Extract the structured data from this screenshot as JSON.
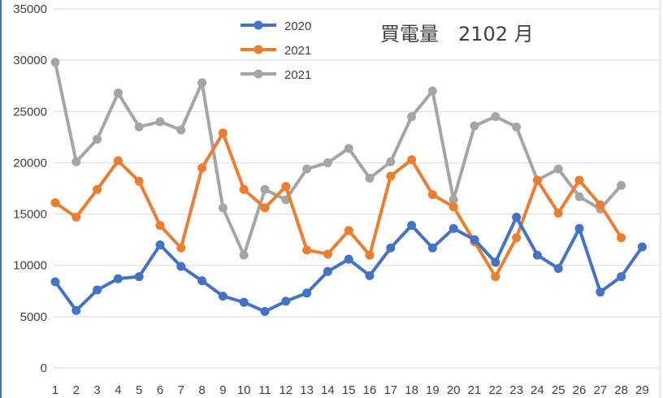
{
  "chart_data": {
    "type": "line",
    "title": "買電量　2102 月",
    "xlabel": "",
    "ylabel": "",
    "categories": [
      "1",
      "2",
      "3",
      "4",
      "5",
      "6",
      "7",
      "8",
      "9",
      "10",
      "11",
      "12",
      "13",
      "14",
      "15",
      "16",
      "17",
      "18",
      "19",
      "20",
      "21",
      "22",
      "23",
      "24",
      "25",
      "26",
      "27",
      "28",
      "29"
    ],
    "ylim": [
      0,
      35000
    ],
    "yticks": [
      0,
      5000,
      10000,
      15000,
      20000,
      25000,
      30000,
      35000
    ],
    "grid": true,
    "legend_position": "top-center",
    "series": [
      {
        "name": "2020",
        "color": "#4472c4",
        "values": [
          8400,
          5600,
          7600,
          8700,
          8900,
          12000,
          9900,
          8500,
          7000,
          6400,
          5500,
          6500,
          7300,
          9400,
          10600,
          9000,
          11700,
          13900,
          11700,
          13600,
          12500,
          10300,
          14700,
          11000,
          9700,
          13600,
          7400,
          8900,
          11800
        ]
      },
      {
        "name": "2021",
        "color": "#ed7d31",
        "values": [
          16100,
          14700,
          17400,
          20200,
          18200,
          13900,
          11700,
          19500,
          22900,
          17400,
          15600,
          17700,
          11500,
          11100,
          13400,
          11000,
          18700,
          20300,
          16900,
          15700,
          12300,
          8900,
          12700,
          18300,
          15100,
          18300,
          15900,
          12700,
          null
        ]
      },
      {
        "name": "2021",
        "color": "#a5a5a5",
        "values": [
          29800,
          20100,
          22300,
          26800,
          23500,
          24000,
          23200,
          27800,
          15600,
          11000,
          17400,
          16400,
          19400,
          20000,
          21400,
          18500,
          20100,
          24500,
          27000,
          16400,
          23600,
          24500,
          23500,
          18300,
          19400,
          16700,
          15500,
          17800,
          null
        ]
      }
    ]
  }
}
